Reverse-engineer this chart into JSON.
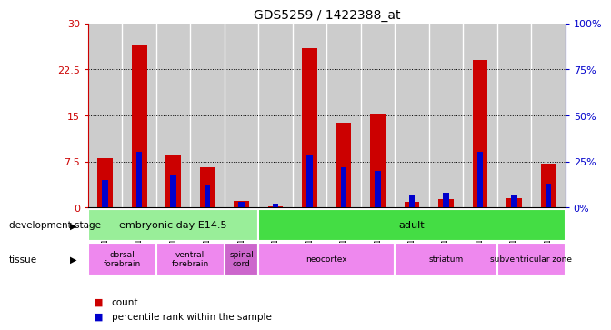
{
  "title": "GDS5259 / 1422388_at",
  "samples": [
    "GSM1195277",
    "GSM1195278",
    "GSM1195279",
    "GSM1195280",
    "GSM1195281",
    "GSM1195268",
    "GSM1195269",
    "GSM1195270",
    "GSM1195271",
    "GSM1195272",
    "GSM1195273",
    "GSM1195274",
    "GSM1195275",
    "GSM1195276"
  ],
  "count_values": [
    8.0,
    26.5,
    8.5,
    6.5,
    1.0,
    0.15,
    26.0,
    13.8,
    15.3,
    0.9,
    1.3,
    24.0,
    1.5,
    7.2
  ],
  "percentile_values": [
    15.0,
    30.0,
    18.0,
    12.0,
    3.0,
    2.0,
    28.0,
    22.0,
    20.0,
    7.0,
    8.0,
    30.0,
    7.0,
    13.0
  ],
  "count_color": "#cc0000",
  "percentile_color": "#0000cc",
  "ylim_left": [
    0,
    30
  ],
  "ylim_right": [
    0,
    100
  ],
  "yticks_left": [
    0,
    7.5,
    15,
    22.5,
    30
  ],
  "yticks_right": [
    0,
    25,
    50,
    75,
    100
  ],
  "ytick_labels_left": [
    "0",
    "7.5",
    "15",
    "22.5",
    "30"
  ],
  "ytick_labels_right": [
    "0%",
    "25%",
    "50%",
    "75%",
    "100%"
  ],
  "bar_bg_color": "#cccccc",
  "bar_sep_color": "#ffffff",
  "dev_stage_row": [
    {
      "label": "embryonic day E14.5",
      "start": 0,
      "end": 5,
      "color": "#99ee99"
    },
    {
      "label": "adult",
      "start": 5,
      "end": 14,
      "color": "#44dd44"
    }
  ],
  "tissue_row": [
    {
      "label": "dorsal\nforebrain",
      "start": 0,
      "end": 2,
      "color": "#ee88ee"
    },
    {
      "label": "ventral\nforebrain",
      "start": 2,
      "end": 4,
      "color": "#ee88ee"
    },
    {
      "label": "spinal\ncord",
      "start": 4,
      "end": 5,
      "color": "#cc66cc"
    },
    {
      "label": "neocortex",
      "start": 5,
      "end": 9,
      "color": "#ee88ee"
    },
    {
      "label": "striatum",
      "start": 9,
      "end": 12,
      "color": "#ee88ee"
    },
    {
      "label": "subventricular zone",
      "start": 12,
      "end": 14,
      "color": "#ee88ee"
    }
  ],
  "legend_count_label": "count",
  "legend_pct_label": "percentile rank within the sample",
  "dev_stage_label": "development stage",
  "tissue_label": "tissue"
}
